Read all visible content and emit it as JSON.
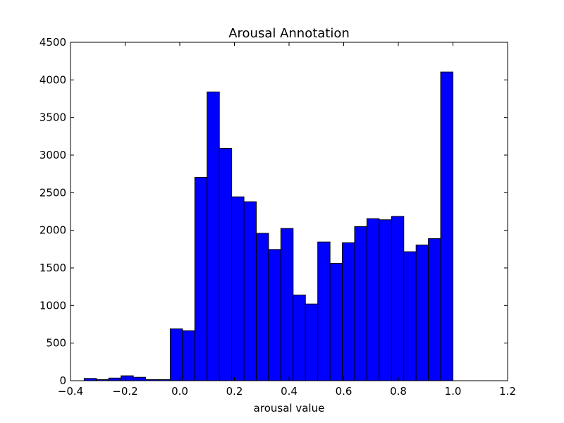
{
  "chart_data": {
    "type": "bar",
    "title": "Arousal Annotation",
    "xlabel": "arousal value",
    "ylabel": "",
    "xlim": [
      -0.4,
      1.2
    ],
    "ylim": [
      0,
      4500
    ],
    "xticks": [
      -0.4,
      -0.2,
      0.0,
      0.2,
      0.4,
      0.6,
      0.8,
      1.0,
      1.2
    ],
    "xtick_labels": [
      "−0.4",
      "−0.2",
      "0.0",
      "0.2",
      "0.4",
      "0.6",
      "0.8",
      "1.0",
      "1.2"
    ],
    "yticks": [
      0,
      500,
      1000,
      1500,
      2000,
      2500,
      3000,
      3500,
      4000,
      4500
    ],
    "ytick_labels": [
      "0",
      "500",
      "1000",
      "1500",
      "2000",
      "2500",
      "3000",
      "3500",
      "4000",
      "4500"
    ],
    "grid": false,
    "bar_color": "#0000ff",
    "edge_color": "#000000",
    "bin_edges": [
      -0.35,
      -0.305,
      -0.26,
      -0.215,
      -0.17,
      -0.125,
      -0.08,
      -0.035,
      0.01,
      0.055,
      0.1,
      0.145,
      0.19,
      0.235,
      0.28,
      0.325,
      0.37,
      0.415,
      0.46,
      0.505,
      0.55,
      0.595,
      0.64,
      0.685,
      0.73,
      0.775,
      0.82,
      0.865,
      0.91,
      0.955,
      1.0
    ],
    "values": [
      30,
      15,
      35,
      65,
      45,
      15,
      15,
      690,
      665,
      2705,
      3840,
      3090,
      2445,
      2380,
      1960,
      1745,
      2025,
      1140,
      1020,
      1845,
      1560,
      1835,
      2050,
      2155,
      2140,
      2185,
      1715,
      1805,
      1890,
      4105
    ]
  }
}
